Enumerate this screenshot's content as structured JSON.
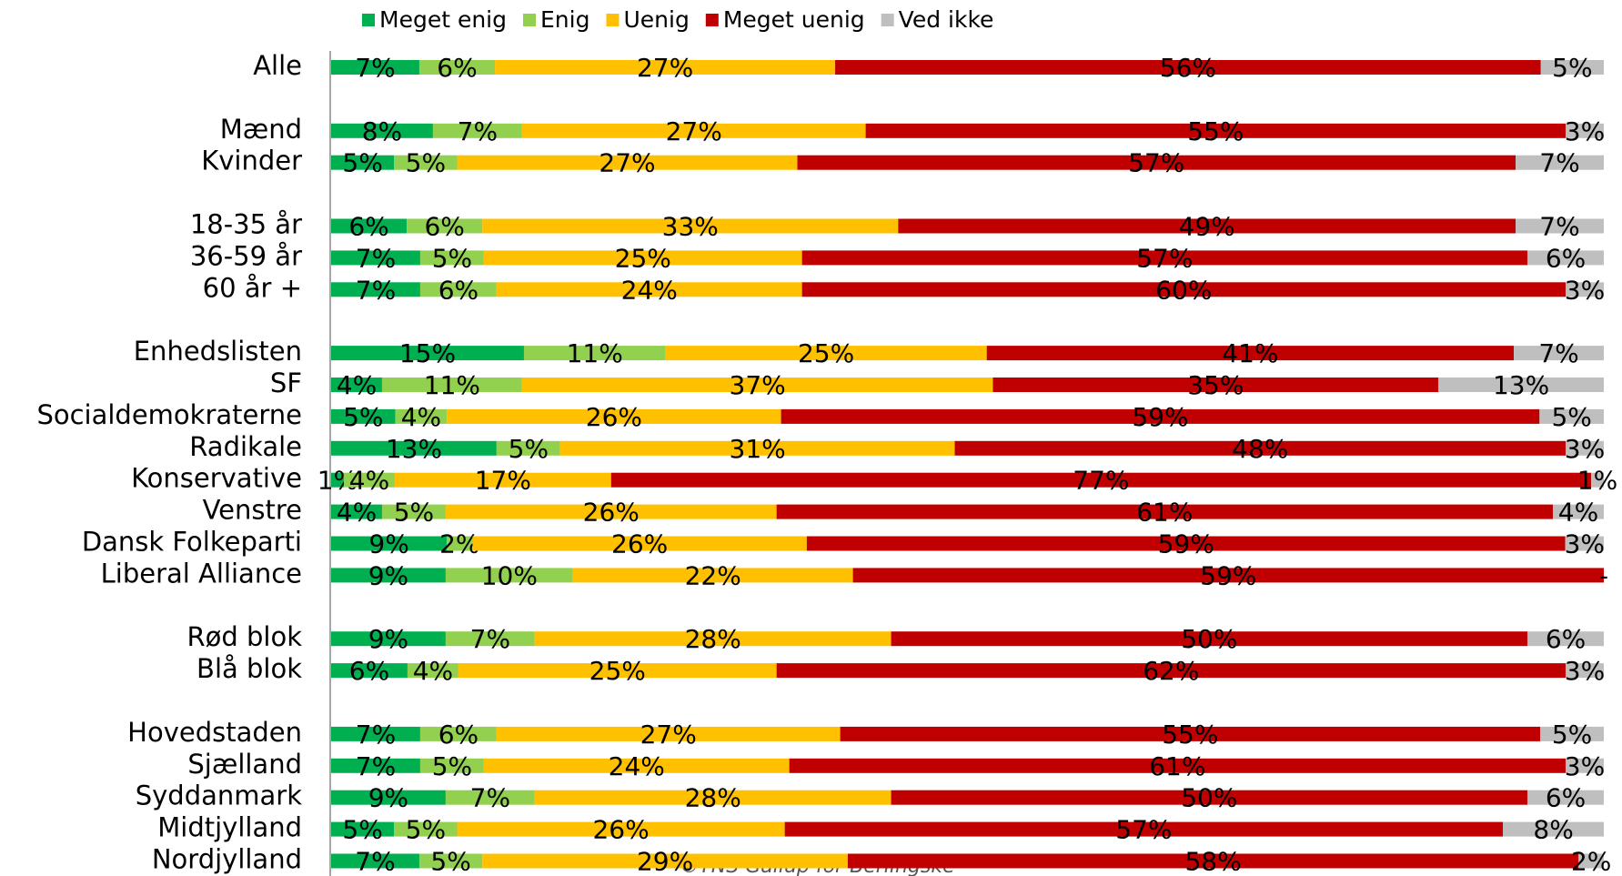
{
  "chart_data": {
    "type": "bar",
    "orientation": "horizontal",
    "stacking": "percent",
    "legend": "top",
    "categories": [
      "Alle",
      null,
      "Mænd",
      "Kvinder",
      null,
      "18-35 år",
      "36-59 år",
      "60 år +",
      null,
      "Enhedslisten",
      "SF",
      "Socialdemokraterne",
      "Radikale",
      "Konservative",
      "Venstre",
      "Dansk Folkeparti",
      "Liberal Alliance",
      null,
      "Rød blok",
      "Blå blok",
      null,
      "Hovedstaden",
      "Sjælland",
      "Syddanmark",
      "Midtjylland",
      "Nordjylland"
    ],
    "series": [
      {
        "name": "Meget enig",
        "color": "#00b050",
        "values": [
          7,
          null,
          8,
          5,
          null,
          6,
          7,
          7,
          null,
          15,
          4,
          5,
          13,
          1,
          4,
          9,
          9,
          null,
          9,
          6,
          null,
          7,
          7,
          9,
          5,
          7
        ],
        "value_labels": [
          "7%",
          null,
          "8%",
          "5%",
          null,
          "6%",
          "7%",
          "7%",
          null,
          "15%",
          "4%",
          "5%",
          "13%",
          "1%",
          "4%",
          "9%",
          "9%",
          null,
          "9%",
          "6%",
          null,
          "7%",
          "7%",
          "9%",
          "5%",
          "7%"
        ]
      },
      {
        "name": "Enig",
        "color": "#92d050",
        "values": [
          6,
          null,
          7,
          5,
          null,
          6,
          5,
          6,
          null,
          11,
          11,
          4,
          5,
          4,
          5,
          2,
          10,
          null,
          7,
          4,
          null,
          6,
          5,
          7,
          5,
          5
        ],
        "value_labels": [
          "6%",
          null,
          "7%",
          "5%",
          null,
          "6%",
          "5%",
          "6%",
          null,
          "11%",
          "11%",
          "4%",
          "5%",
          "4%",
          "5%",
          "2%",
          "10%",
          null,
          "7%",
          "4%",
          null,
          "6%",
          "5%",
          "7%",
          "5%",
          "5%"
        ]
      },
      {
        "name": "Uenig",
        "color": "#ffc000",
        "values": [
          27,
          null,
          27,
          27,
          null,
          33,
          25,
          24,
          null,
          25,
          37,
          26,
          31,
          17,
          26,
          26,
          22,
          null,
          28,
          25,
          null,
          27,
          24,
          28,
          26,
          29
        ],
        "value_labels": [
          "27%",
          null,
          "27%",
          "27%",
          null,
          "33%",
          "25%",
          "24%",
          null,
          "25%",
          "37%",
          "26%",
          "31%",
          "17%",
          "26%",
          "26%",
          "22%",
          null,
          "28%",
          "25%",
          null,
          "27%",
          "24%",
          "28%",
          "26%",
          "29%"
        ]
      },
      {
        "name": "Meget uenig",
        "color": "#c00000",
        "values": [
          56,
          null,
          55,
          57,
          null,
          49,
          57,
          60,
          null,
          41,
          35,
          59,
          48,
          77,
          61,
          59,
          59,
          null,
          50,
          62,
          null,
          55,
          61,
          50,
          57,
          58
        ],
        "value_labels": [
          "56%",
          null,
          "55%",
          "57%",
          null,
          "49%",
          "57%",
          "60%",
          null,
          "41%",
          "35%",
          "59%",
          "48%",
          "77%",
          "61%",
          "59%",
          "59%",
          null,
          "50%",
          "62%",
          null,
          "55%",
          "61%",
          "50%",
          "57%",
          "58%"
        ]
      },
      {
        "name": "Ved ikke",
        "color": "#bfbfbf",
        "values": [
          5,
          null,
          3,
          7,
          null,
          7,
          6,
          3,
          null,
          7,
          13,
          5,
          3,
          1,
          4,
          3,
          0,
          null,
          6,
          3,
          null,
          5,
          3,
          6,
          8,
          2
        ],
        "value_labels": [
          "5%",
          null,
          "3%",
          "7%",
          null,
          "7%",
          "6%",
          "3%",
          null,
          "7%",
          "13%",
          "5%",
          "3%",
          "1%",
          "4%",
          "3%",
          "-",
          null,
          "6%",
          "3%",
          null,
          "5%",
          "3%",
          "6%",
          "8%",
          "2%"
        ]
      }
    ],
    "source": "©TNS Gallup for Berlingske"
  }
}
